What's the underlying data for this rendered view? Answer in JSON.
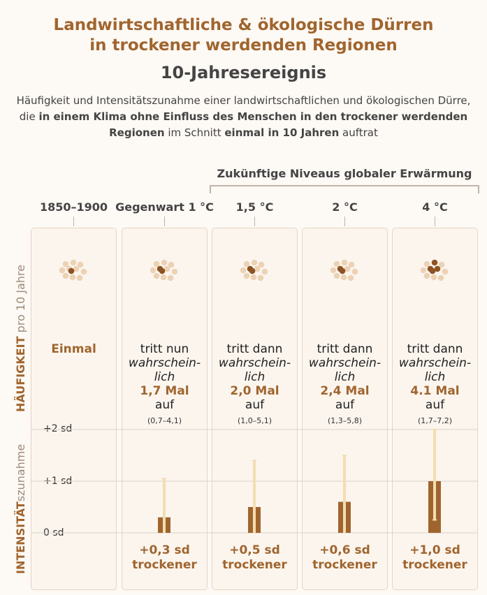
{
  "title_line1": "Landwirtschaftliche & ökologische Dürren",
  "title_line2": "in trockener werdenden Regionen",
  "subtitle": "10-Jahresereignis",
  "description": {
    "part1": "Häufigkeit und Intensitätszunahme einer landwirtschaftlichen und ökologischen Dürre, die ",
    "bold1": "in einem Klima ohne Einfluss des Menschen in den trockener werdenden Regionen",
    "part2": " im Schnitt ",
    "bold2": "einmal in 10 Jahren",
    "part3": " auftrat"
  },
  "future_label": "Zukünftige Niveaus globaler Erwärmung",
  "side_labels": {
    "frequency_main": "HÄUFIGKEIT",
    "frequency_sub": " pro 10 Jahre",
    "intensity_main": "INTENSITÄT",
    "intensity_sub": "szunahme"
  },
  "colors": {
    "accent": "#a0652e",
    "dot_light": "#ecd2b4",
    "dot_dark": "#8e5324",
    "bar": "#a0652e",
    "error_bar": "#f2deb0"
  },
  "columns": [
    {
      "header": "1850–1900",
      "freq_label": "Einmal"
    },
    {
      "header": "Gegenwart 1 °C",
      "freq_prefix": "tritt nun",
      "freq_italic": "wahrschein-",
      "freq_italic2": "lich",
      "freq_value": "1,7 Mal",
      "freq_suffix": "auf",
      "freq_range": "(0,7–4,1)",
      "result_line1": "+0,3 sd",
      "result_line2": "trockener"
    },
    {
      "header": "1,5 °C",
      "freq_prefix": "tritt dann",
      "freq_italic": "wahrschein-",
      "freq_italic2": "lich",
      "freq_value": "2,0 Mal",
      "freq_suffix": "auf",
      "freq_range": "(1,0–5,1)",
      "result_line1": "+0,5 sd",
      "result_line2": "trockener"
    },
    {
      "header": "2 °C",
      "freq_prefix": "tritt dann",
      "freq_italic": "wahrschein-",
      "freq_italic2": "lich",
      "freq_value": "2,4 Mal",
      "freq_suffix": "auf",
      "freq_range": "(1,3–5,8)",
      "result_line1": "+0,6 sd",
      "result_line2": "trockener"
    },
    {
      "header": "4 °C",
      "freq_prefix": "tritt dann",
      "freq_italic": "wahrschein-",
      "freq_italic2": "lich",
      "freq_value": "4.1 Mal",
      "freq_suffix": "auf",
      "freq_range": "(1,7–7,2)",
      "result_line1": "+1,0 sd",
      "result_line2": "trockener"
    }
  ],
  "chart_data": {
    "type": "bar",
    "categories": [
      "1850–1900",
      "Gegenwart 1 °C",
      "1,5 °C",
      "2 °C",
      "4 °C"
    ],
    "frequency_per_10_years": [
      1,
      1.7,
      2.0,
      2.4,
      4.1
    ],
    "series": [
      {
        "values": [
          0,
          0.3,
          0.5,
          0.6,
          1.0
        ],
        "error_low": [
          null,
          0.0,
          0.0,
          0.0,
          0.25
        ],
        "error_high": [
          null,
          1.05,
          1.4,
          1.5,
          2.0
        ]
      }
    ],
    "y_ticks": [
      "0 sd",
      "+1 sd",
      "+2 sd"
    ],
    "ylim": [
      0,
      2
    ],
    "grid": true
  }
}
